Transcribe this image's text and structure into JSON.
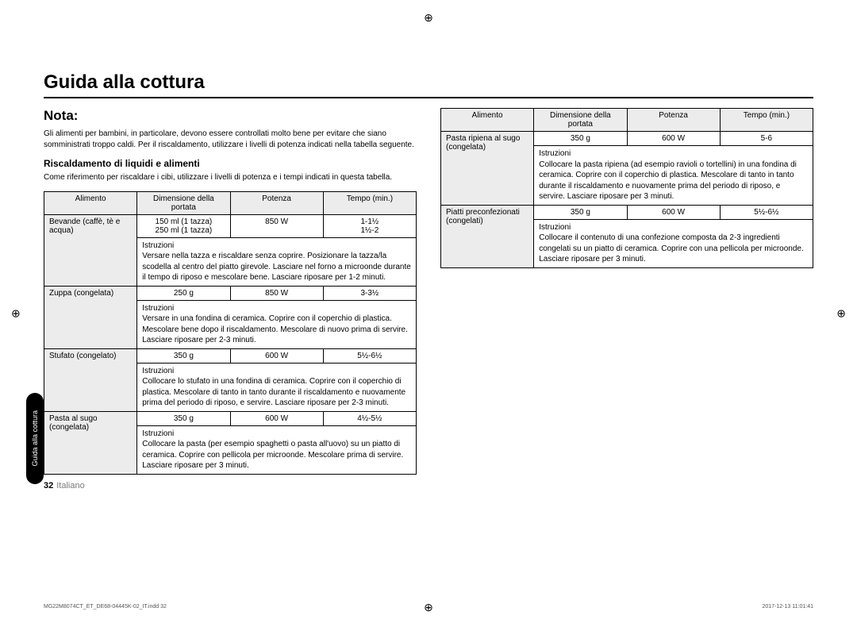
{
  "title": "Guida alla cottura",
  "nota_heading": "Nota:",
  "nota_body": "Gli alimenti per bambini, in particolare, devono essere controllati molto bene per evitare che siano somministrati troppo caldi. Per il riscaldamento, utilizzare i livelli di potenza indicati nella tabella seguente.",
  "sub_heading": "Riscaldamento di liquidi e alimenti",
  "sub_body": "Come riferimento per riscaldare i cibi, utilizzare i livelli di potenza e i tempi indicati in questa tabella.",
  "headers": {
    "food": "Alimento",
    "portion": "Dimensione della portata",
    "power": "Potenza",
    "time": "Tempo (min.)",
    "instr": "Istruzioni"
  },
  "left_rows": [
    {
      "name": "Bevande (caffè, tè e acqua)",
      "portion_lines": [
        "150 ml (1 tazza)",
        "250 ml (1 tazza)"
      ],
      "power": "850 W",
      "time_lines": [
        "1-1½",
        "1½-2"
      ],
      "instr": "Versare nella tazza e riscaldare senza coprire. Posizionare la tazza/la scodella al centro del piatto girevole. Lasciare nel forno a microonde durante il tempo di riposo e mescolare bene. Lasciare riposare per 1-2 minuti."
    },
    {
      "name": "Zuppa (congelata)",
      "portion": "250 g",
      "power": "850 W",
      "time": "3-3½",
      "instr": "Versare in una fondina di ceramica. Coprire con il coperchio di plastica. Mescolare bene dopo il riscaldamento. Mescolare di nuovo prima di servire. Lasciare riposare per 2-3 minuti."
    },
    {
      "name": "Stufato (congelato)",
      "portion": "350 g",
      "power": "600 W",
      "time": "5½-6½",
      "instr": "Collocare lo stufato in una fondina di ceramica. Coprire con il coperchio di plastica. Mescolare di tanto in tanto durante il riscaldamento e nuovamente prima del periodo di riposo, e servire. Lasciare riposare per 2-3 minuti."
    },
    {
      "name": "Pasta al sugo (congelata)",
      "portion": "350 g",
      "power": "600 W",
      "time": "4½-5½",
      "instr": "Collocare la pasta (per esempio spaghetti o pasta all'uovo) su un piatto di ceramica. Coprire con pellicola per microonde. Mescolare prima di servire. Lasciare riposare per 3 minuti."
    }
  ],
  "right_rows": [
    {
      "name": "Pasta ripiena al sugo (congelata)",
      "portion": "350 g",
      "power": "600 W",
      "time": "5-6",
      "instr": "Collocare la pasta ripiena (ad esempio ravioli o tortellini) in una fondina di ceramica. Coprire con il coperchio di plastica. Mescolare di tanto in tanto durante il riscaldamento e nuovamente prima del periodo di riposo, e servire. Lasciare riposare per 3 minuti."
    },
    {
      "name": "Piatti preconfezionati (congelati)",
      "portion": "350 g",
      "power": "600 W",
      "time": "5½-6½",
      "instr": "Collocare il contenuto di una confezione composta da 2-3 ingredienti congelati su un piatto di ceramica. Coprire con una pellicola per microonde. Lasciare riposare per 3 minuti."
    }
  ],
  "side_tab": "Guida alla cottura",
  "page_number": "32",
  "page_lang": "Italiano",
  "footer_left": "MG22M8074CT_ET_DE68-04445K-02_IT.indd   32",
  "footer_right": "2017-12-13   11:01:41",
  "reg_mark": "⊕"
}
